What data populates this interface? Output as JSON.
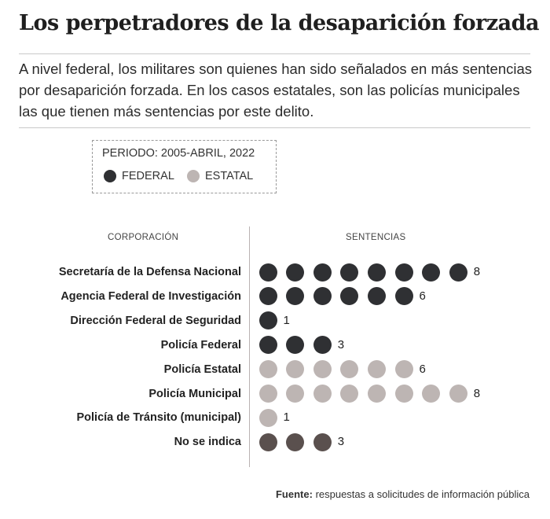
{
  "title": "Los perpetradores de la desaparición forzada",
  "subtitle": "A nivel federal, los militares son quienes han sido señalados en más sentencias por desaparición forzada. En los casos estatales, son las policías municipales las que tienen más sentencias por este delito.",
  "legend": {
    "period": "PERIODO: 2005-ABRIL, 2022",
    "items": [
      {
        "label": "FEDERAL",
        "color": "#2f3033"
      },
      {
        "label": "ESTATAL",
        "color": "#bdb5b3"
      }
    ]
  },
  "colors": {
    "federal": "#2f3033",
    "estatal": "#bdb5b3",
    "no_indica": "#5a504e"
  },
  "chart_data": {
    "type": "dot",
    "column_headers": {
      "left": "CORPORACIÓN",
      "right": "SENTENCIAS"
    },
    "rows": [
      {
        "label": "Secretaría de la Defensa Nacional",
        "value": 8,
        "group": "federal"
      },
      {
        "label": "Agencia Federal de Investigación",
        "value": 6,
        "group": "federal"
      },
      {
        "label": "Dirección Federal de Seguridad",
        "value": 1,
        "group": "federal"
      },
      {
        "label": "Policía Federal",
        "value": 3,
        "group": "federal"
      },
      {
        "label": "Policía Estatal",
        "value": 6,
        "group": "estatal"
      },
      {
        "label": "Policía Municipal",
        "value": 8,
        "group": "estatal"
      },
      {
        "label": "Policía de Tránsito (municipal)",
        "value": 1,
        "group": "estatal"
      },
      {
        "label": "No se indica",
        "value": 3,
        "group": "no_indica"
      }
    ]
  },
  "source": {
    "label": "Fuente:",
    "text": "respuestas a solicitudes de información pública"
  }
}
